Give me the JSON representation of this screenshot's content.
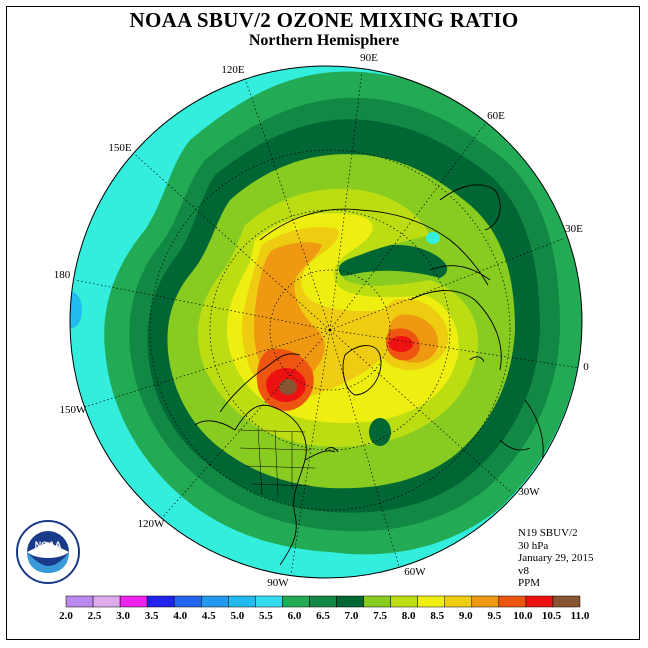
{
  "title": "NOAA SBUV/2 OZONE MIXING RATIO",
  "subtitle": "Northern Hemisphere",
  "meta": {
    "satellite": "N19 SBUV/2",
    "level": "30 hPa",
    "date": "January 29, 2015",
    "version": "v8",
    "units": "PPM"
  },
  "longitude_labels": {
    "e90": "90E",
    "e60": "60E",
    "e30": "30E",
    "zero": "0",
    "w30": "30W",
    "w60": "60W",
    "w90": "90W",
    "w120": "120W",
    "w150": "150W",
    "d180": "180",
    "e150": "150E",
    "e120": "120E"
  },
  "logo": {
    "text": "NOAA",
    "ring_text": "NATIONAL OCEANIC AND ATMOSPHERIC ADMINISTRATION · U.S. DEPARTMENT OF COMMERCE"
  },
  "colorbar": {
    "labels": [
      "2.0",
      "2.5",
      "3.0",
      "3.5",
      "4.0",
      "4.5",
      "5.0",
      "5.5",
      "6.0",
      "6.5",
      "7.0",
      "7.5",
      "8.0",
      "8.5",
      "9.0",
      "9.5",
      "10.0",
      "10.5",
      "11.0"
    ],
    "colors": [
      "#bb88ee",
      "#ddaaee",
      "#ee22ee",
      "#2222ee",
      "#2266ee",
      "#2299ee",
      "#22bbee",
      "#33ddee",
      "#22aa55",
      "#118844",
      "#006633",
      "#88cc22",
      "#bbdd11",
      "#eeee11",
      "#eecc11",
      "#ee9911",
      "#ee5511",
      "#ee1111",
      "#885533"
    ]
  },
  "colors": {
    "ocean_base": "#33eedd",
    "ring_dark": "#118844",
    "ring_darker": "#006633"
  }
}
